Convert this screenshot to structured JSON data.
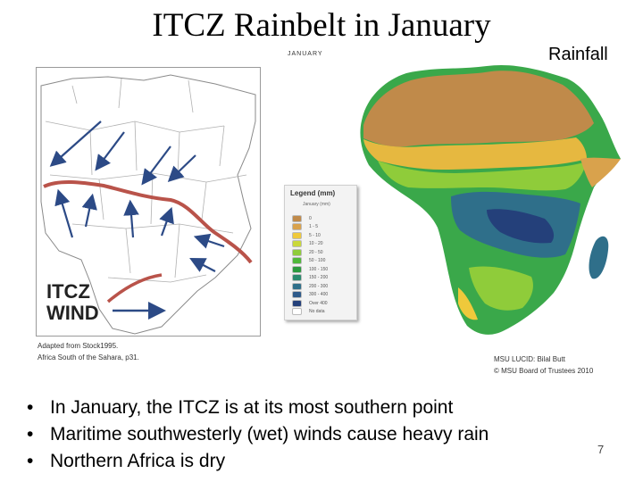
{
  "title": "ITCZ Rainbelt in January",
  "rainfall_heading": "Rainfall",
  "left_map": {
    "itcz_label": "ITCZ",
    "wind_label": "WIND",
    "caption_line1": "Adapted from Stock1995.",
    "caption_line2": "Africa South of the Sahara, p31."
  },
  "rain_map": {
    "month_label": "JANUARY",
    "legend_title": "Legend (mm)",
    "legend_sub": "January (mm)",
    "legend_items": [
      {
        "label": "0",
        "color": "#c08a4a"
      },
      {
        "label": "1 - 5",
        "color": "#d9a24c"
      },
      {
        "label": "5 - 10",
        "color": "#efc93b"
      },
      {
        "label": "10 - 20",
        "color": "#c9d83a"
      },
      {
        "label": "20 - 50",
        "color": "#8fcc3a"
      },
      {
        "label": "50 - 100",
        "color": "#4fb83a"
      },
      {
        "label": "100 - 150",
        "color": "#2b9a3e"
      },
      {
        "label": "150 - 200",
        "color": "#2a8a6e"
      },
      {
        "label": "200 - 300",
        "color": "#2f6f8a"
      },
      {
        "label": "300 - 400",
        "color": "#2e5a8a"
      },
      {
        "label": "Over 400",
        "color": "#24407a"
      },
      {
        "label": "No data",
        "color": "#ffffff"
      }
    ],
    "caption_line1": "MSU LUCID: Bilal Butt",
    "caption_line2": "© MSU Board of Trustees 2010"
  },
  "bullets": [
    "In January, the ITCZ is at its most southern point",
    "Maritime southwesterly (wet) winds cause heavy rain",
    "Northern Africa is dry"
  ],
  "bullet_symbol": "•",
  "page_number": "7",
  "colors": {
    "itcz_line": "#b9534a",
    "wind_arrow": "#2c4a86",
    "ocean": "#ffffff",
    "sahara": "#c08a4a",
    "sahel": "#e6b840",
    "equatorial": "#2f6f8a",
    "tropical_green": "#3aa84a"
  }
}
